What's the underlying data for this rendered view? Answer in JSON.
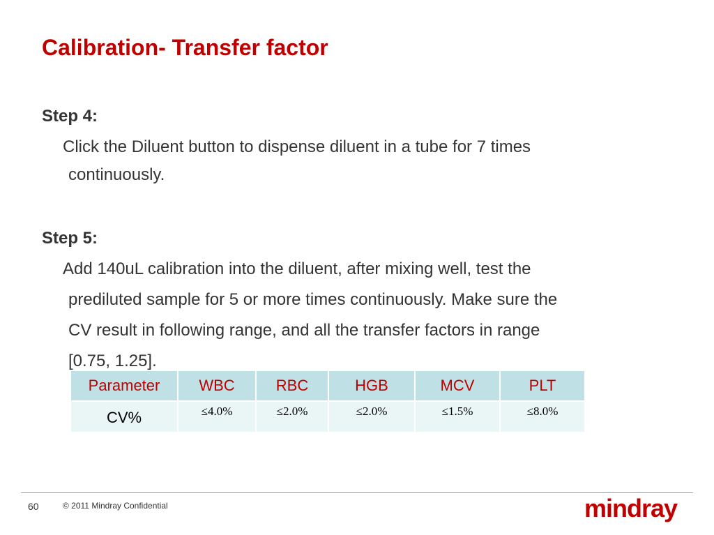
{
  "header": {
    "title": "Calibration- Transfer factor"
  },
  "steps": [
    {
      "label": "Step 4:",
      "lines": [
        "Click the Diluent button to dispense diluent  in a tube for 7 times",
        "continuously."
      ]
    },
    {
      "label": "Step 5:",
      "lines": [
        "Add 140uL calibration into the diluent, after mixing well, test the",
        "prediluted sample for 5 or more times continuously. Make sure the",
        "CV result in following range, and all the transfer factors in range",
        "[0.75, 1.25]."
      ]
    }
  ],
  "table": {
    "header": [
      "Parameter",
      "WBC",
      "RBC",
      "HGB",
      "MCV",
      "PLT"
    ],
    "rows": [
      [
        "CV%",
        "≤4.0%",
        "≤2.0%",
        "≤2.0%",
        "≤1.5%",
        "≤8.0%"
      ]
    ]
  },
  "footer": {
    "page": "60",
    "copyright": "© 2011 Mindray Confidential",
    "logo": "mindray"
  }
}
